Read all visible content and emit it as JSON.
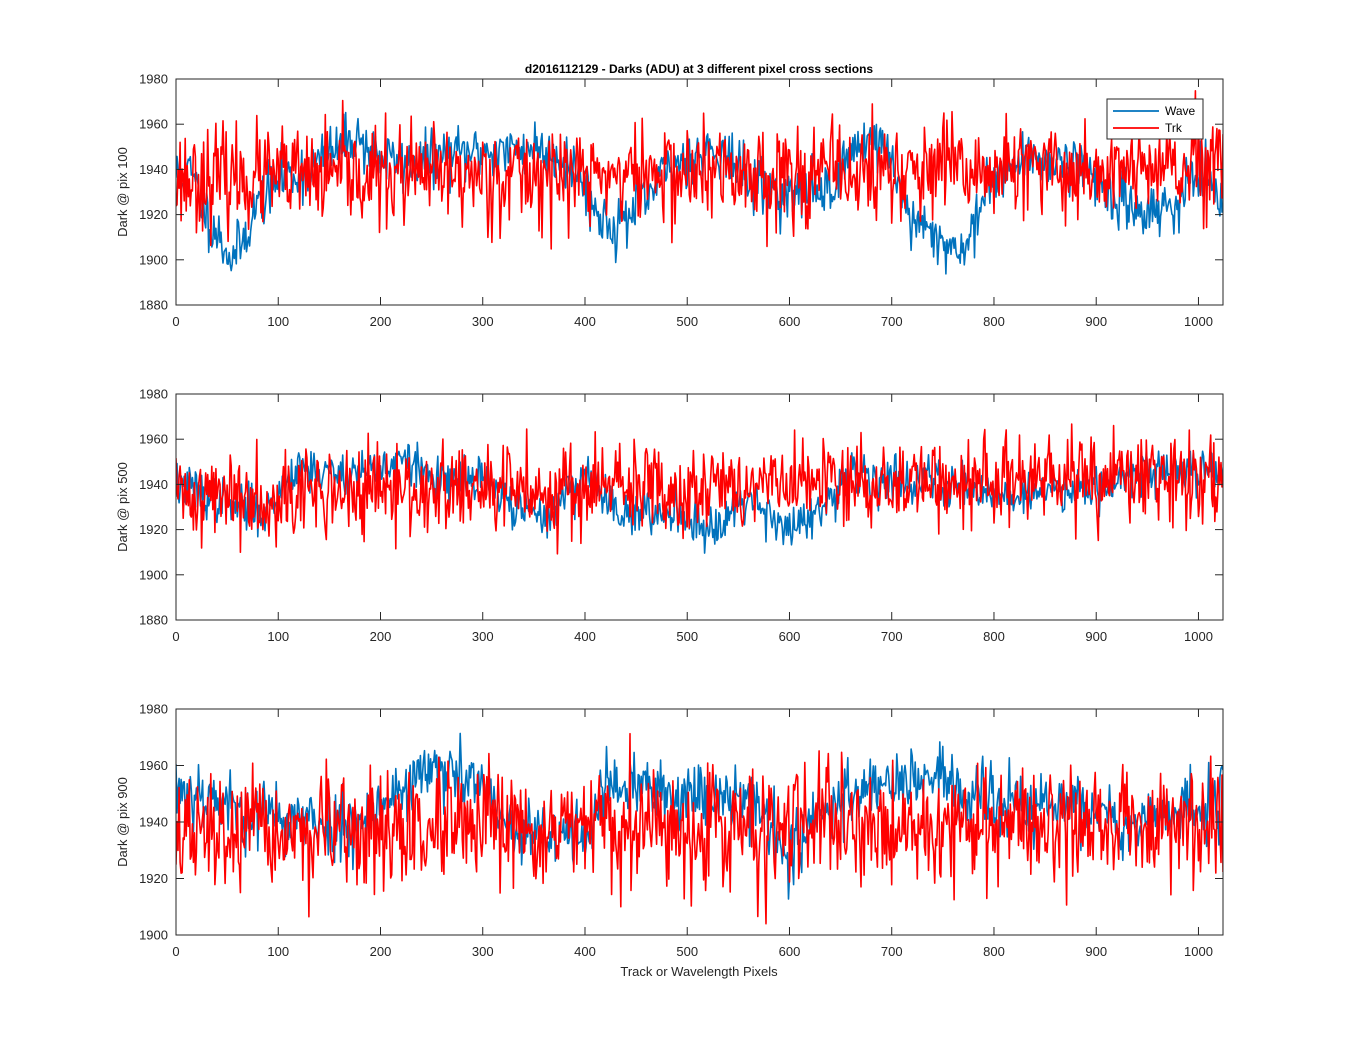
{
  "figure": {
    "title": "d2016112129 - Darks (ADU) at 3 different pixel cross sections",
    "xlabel": "Track or Wavelength Pixels"
  },
  "colors": {
    "wave": "#0072BD",
    "trk": "#FF0000",
    "axis": "#262626"
  },
  "chart_data": [
    {
      "type": "line",
      "ylabel": "Dark @ pix 100",
      "xlim": [
        0,
        1024
      ],
      "ylim": [
        1880,
        1980
      ],
      "xticks": [
        0,
        100,
        200,
        300,
        400,
        500,
        600,
        700,
        800,
        900,
        1000
      ],
      "yticks": [
        1880,
        1900,
        1920,
        1940,
        1960,
        1980
      ],
      "legend": {
        "position": "top-right",
        "entries": [
          "Wave",
          "Trk"
        ]
      },
      "series": [
        {
          "name": "Wave",
          "noise": 6,
          "seed": 11,
          "x": [
            0,
            15,
            30,
            45,
            55,
            65,
            80,
            100,
            130,
            160,
            175,
            200,
            230,
            260,
            300,
            330,
            350,
            380,
            400,
            410,
            430,
            460,
            480,
            500,
            530,
            560,
            600,
            640,
            660,
            680,
            700,
            720,
            740,
            760,
            770,
            790,
            800,
            840,
            870,
            890,
            920,
            950,
            980,
            1000,
            1024
          ],
          "y": [
            1938,
            1938,
            1920,
            1908,
            1900,
            1908,
            1925,
            1935,
            1940,
            1950,
            1955,
            1945,
            1942,
            1946,
            1948,
            1948,
            1950,
            1945,
            1935,
            1920,
            1915,
            1926,
            1940,
            1945,
            1950,
            1935,
            1928,
            1932,
            1948,
            1955,
            1945,
            1915,
            1912,
            1905,
            1905,
            1925,
            1940,
            1945,
            1944,
            1942,
            1925,
            1922,
            1925,
            1940,
            1922
          ]
        },
        {
          "name": "Trk",
          "noise": 11,
          "seed": 23,
          "x": [
            0,
            1024
          ],
          "y": [
            1936,
            1940
          ]
        }
      ]
    },
    {
      "type": "line",
      "ylabel": "Dark @ pix 500",
      "xlim": [
        0,
        1024
      ],
      "ylim": [
        1880,
        1980
      ],
      "xticks": [
        0,
        100,
        200,
        300,
        400,
        500,
        600,
        700,
        800,
        900,
        1000
      ],
      "yticks": [
        1880,
        1900,
        1920,
        1940,
        1960,
        1980
      ],
      "series": [
        {
          "name": "Wave",
          "noise": 5,
          "seed": 37,
          "x": [
            0,
            30,
            60,
            90,
            120,
            140,
            170,
            200,
            230,
            260,
            300,
            330,
            360,
            400,
            430,
            460,
            490,
            520,
            560,
            600,
            640,
            660,
            700,
            740,
            780,
            820,
            860,
            900,
            940,
            980,
            1024
          ],
          "y": [
            1940,
            1935,
            1930,
            1928,
            1950,
            1945,
            1945,
            1948,
            1950,
            1940,
            1942,
            1930,
            1925,
            1945,
            1930,
            1925,
            1930,
            1920,
            1935,
            1920,
            1930,
            1945,
            1942,
            1942,
            1938,
            1935,
            1938,
            1940,
            1945,
            1946,
            1948
          ]
        },
        {
          "name": "Trk",
          "noise": 10,
          "seed": 41,
          "x": [
            0,
            1024
          ],
          "y": [
            1935,
            1943
          ]
        }
      ]
    },
    {
      "type": "line",
      "ylabel": "Dark @ pix 900",
      "xlim": [
        0,
        1024
      ],
      "ylim": [
        1900,
        1980
      ],
      "xticks": [
        0,
        100,
        200,
        300,
        400,
        500,
        600,
        700,
        800,
        900,
        1000
      ],
      "yticks": [
        1900,
        1920,
        1940,
        1960,
        1980
      ],
      "series": [
        {
          "name": "Wave",
          "noise": 6,
          "seed": 53,
          "x": [
            0,
            30,
            60,
            100,
            130,
            160,
            200,
            240,
            270,
            300,
            330,
            370,
            400,
            420,
            450,
            480,
            510,
            560,
            600,
            630,
            660,
            690,
            720,
            750,
            780,
            820,
            850,
            880,
            920,
            960,
            1000,
            1024
          ],
          "y": [
            1952,
            1950,
            1944,
            1942,
            1940,
            1938,
            1945,
            1958,
            1956,
            1952,
            1935,
            1935,
            1936,
            1952,
            1952,
            1950,
            1950,
            1950,
            1928,
            1942,
            1950,
            1955,
            1955,
            1955,
            1948,
            1946,
            1946,
            1946,
            1940,
            1942,
            1944,
            1950
          ]
        },
        {
          "name": "Trk",
          "noise": 10,
          "seed": 67,
          "x": [
            0,
            1024
          ],
          "y": [
            1935,
            1940
          ]
        }
      ]
    }
  ]
}
